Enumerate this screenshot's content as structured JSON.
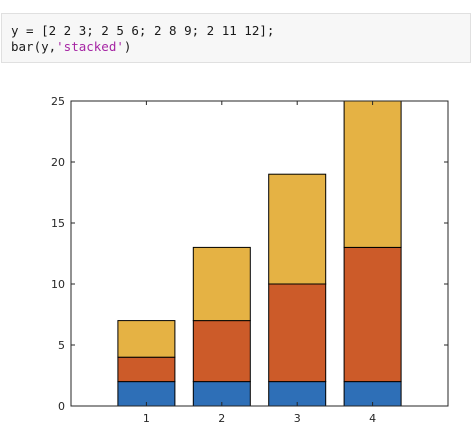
{
  "code": {
    "line1": "y = [2 2 3; 2 5 6; 2 8 9; 2 11 12];",
    "line2_prefix": "bar(y,",
    "line2_string": "'stacked'",
    "line2_suffix": ")"
  },
  "chart_data": {
    "type": "bar",
    "stacked": true,
    "categories": [
      "1",
      "2",
      "3",
      "4"
    ],
    "series": [
      {
        "values": [
          2,
          2,
          2,
          2
        ],
        "color": "#2e6fb7"
      },
      {
        "values": [
          2,
          5,
          8,
          11
        ],
        "color": "#cc5b29"
      },
      {
        "values": [
          3,
          6,
          9,
          12
        ],
        "color": "#e5b244"
      }
    ],
    "ylim": [
      0,
      25
    ],
    "yticks": [
      0,
      5,
      10,
      15,
      20,
      25
    ],
    "xlim": [
      0,
      5
    ],
    "grid": false
  }
}
